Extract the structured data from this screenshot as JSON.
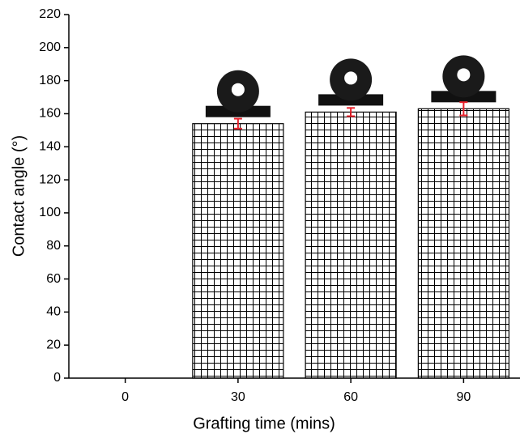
{
  "chart_data": {
    "type": "bar",
    "x_label": "Grafting time (mins)",
    "y_label": "Contact angle (°)",
    "categories": [
      "0",
      "30",
      "60",
      "90"
    ],
    "values": [
      null,
      154,
      161,
      163
    ],
    "errors": [
      null,
      3,
      2.5,
      4
    ],
    "error_color": "#e8202a",
    "ylim": [
      0,
      220
    ],
    "yticks": [
      0,
      20,
      40,
      60,
      80,
      100,
      120,
      140,
      160,
      180,
      200,
      220
    ]
  }
}
